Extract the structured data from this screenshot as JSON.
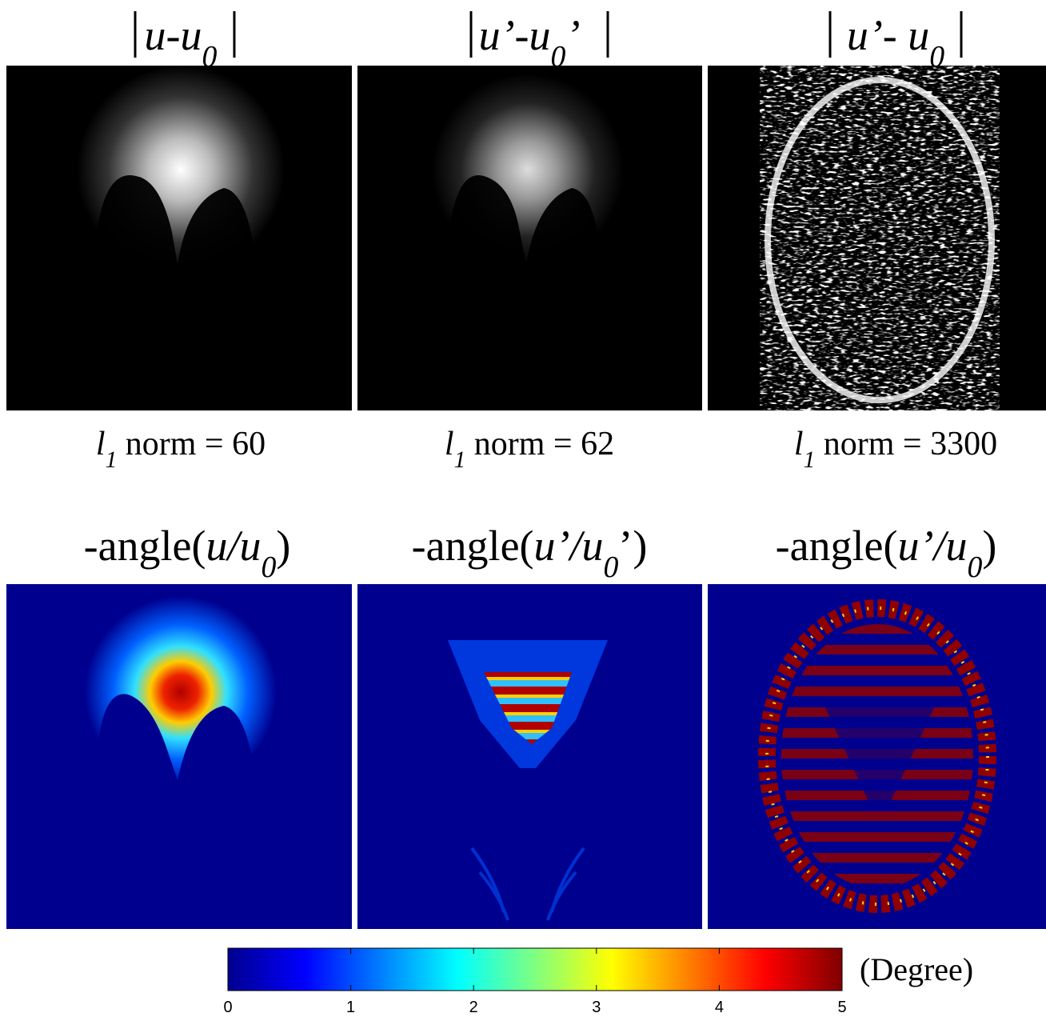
{
  "panels_top": [
    {
      "title": [
        {
          "text": "u-u",
          "style": "italic"
        },
        {
          "text": "0",
          "style": "sub"
        }
      ],
      "norm": [
        {
          "text": "l",
          "style": "italic"
        },
        {
          "text": "1",
          "style": "sub"
        },
        {
          "text": " norm = 60",
          "style": "normal"
        }
      ]
    },
    {
      "title": [
        {
          "text": "u’-u",
          "style": "italic"
        },
        {
          "text": "0",
          "style": "sub"
        },
        {
          "text": "’",
          "style": "italic"
        }
      ],
      "norm": [
        {
          "text": "l",
          "style": "italic"
        },
        {
          "text": "1",
          "style": "sub"
        },
        {
          "text": " norm = 62",
          "style": "normal"
        }
      ]
    },
    {
      "title": [
        {
          "text": "u’- u",
          "style": "italic"
        },
        {
          "text": "0",
          "style": "sub"
        }
      ],
      "norm": [
        {
          "text": "l",
          "style": "italic"
        },
        {
          "text": "1",
          "style": "sub"
        },
        {
          "text": " norm = 3300",
          "style": "normal"
        }
      ]
    }
  ],
  "panels_bottom": [
    {
      "title": [
        {
          "text": "-angle(",
          "style": "normal"
        },
        {
          "text": "u/u",
          "style": "italic"
        },
        {
          "text": "0",
          "style": "sub"
        },
        {
          "text": ")",
          "style": "normal"
        }
      ]
    },
    {
      "title": [
        {
          "text": "-angle(",
          "style": "normal"
        },
        {
          "text": "u’/u",
          "style": "italic"
        },
        {
          "text": "0",
          "style": "sub"
        },
        {
          "text": "’)",
          "style": "normal"
        }
      ]
    },
    {
      "title": [
        {
          "text": "-angle(",
          "style": "normal"
        },
        {
          "text": "u’/u",
          "style": "italic"
        },
        {
          "text": "0",
          "style": "sub"
        },
        {
          "text": ")",
          "style": "normal"
        }
      ]
    }
  ],
  "colorbar": {
    "label": "(Degree)",
    "lim": [
      0,
      5
    ],
    "ticks": [
      0,
      1,
      2,
      3,
      4,
      5
    ]
  }
}
